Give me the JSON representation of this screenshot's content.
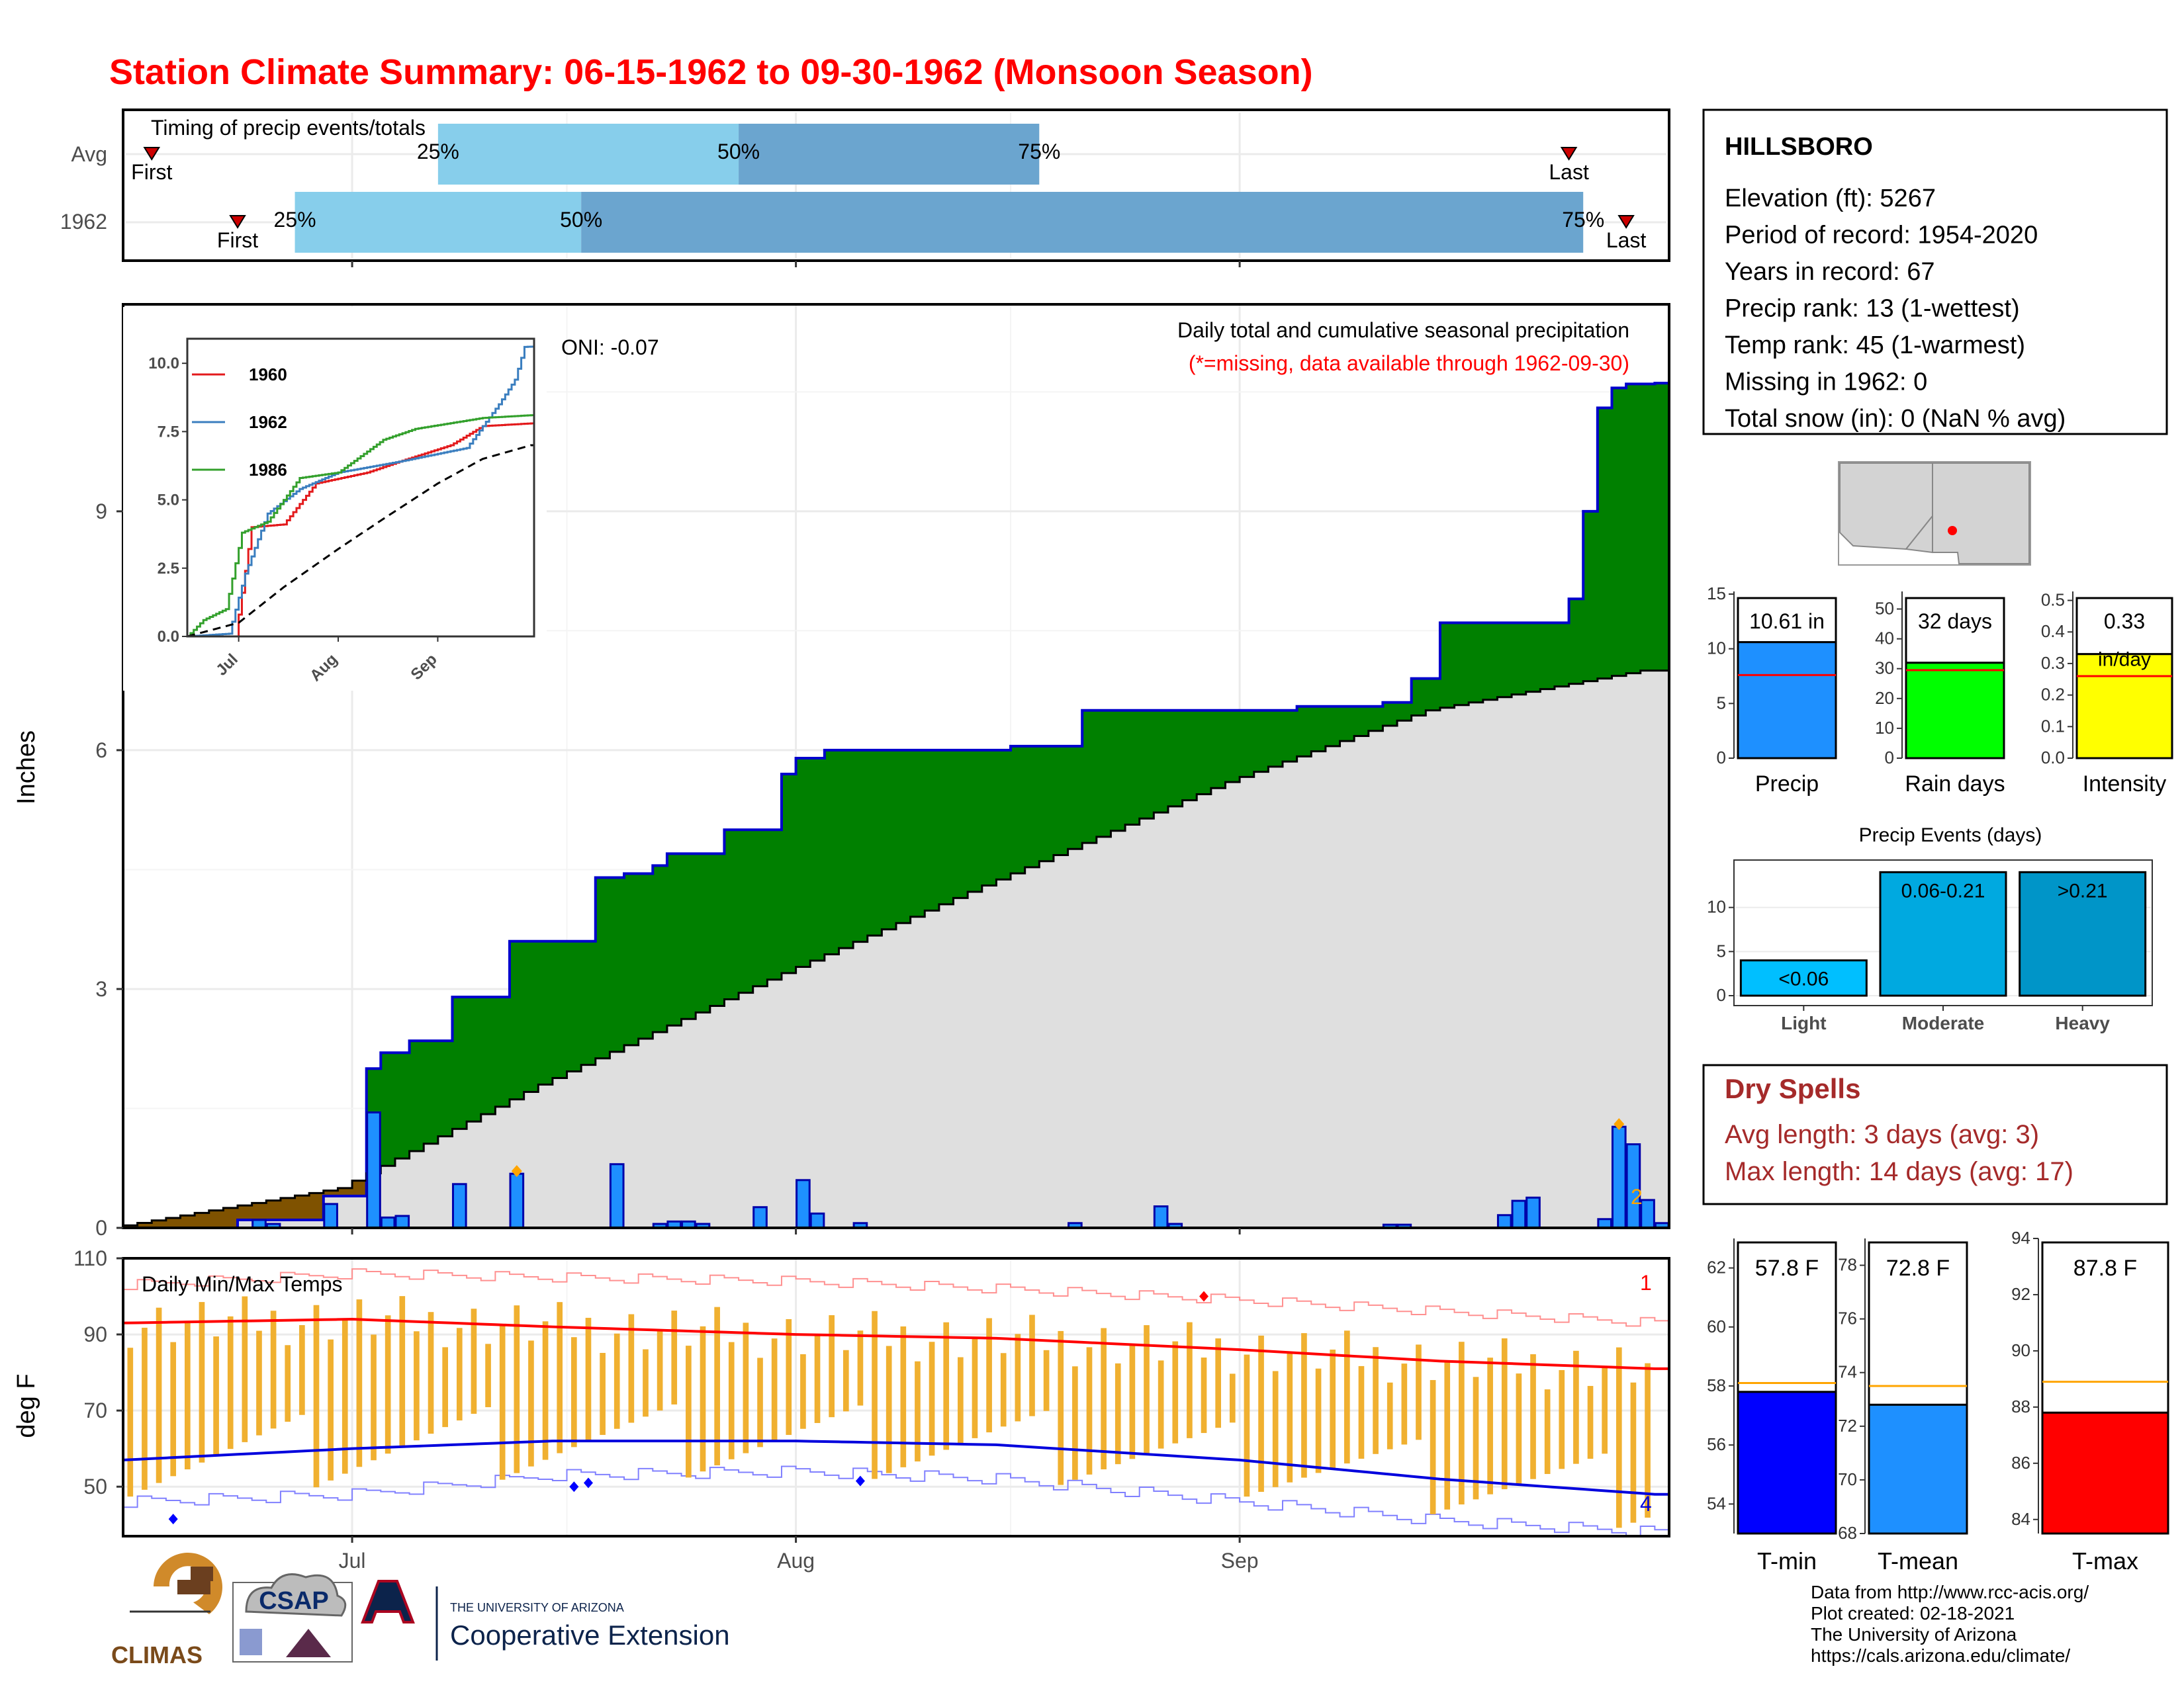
{
  "title": "Station Climate Summary: 06-15-1962 to 09-30-1962 (Monsoon Season)",
  "colors": {
    "title": "#ff0000",
    "cum_precip": "#008000",
    "avg_cum": "#dfdfdf",
    "pre_season": "#7f5200",
    "daily_bar": "#1e90ff",
    "outline": "#0000cc",
    "temp_bar": "#f0b030",
    "avg_max": "#ff0000",
    "avg_min": "#0000dd",
    "light_blue": "#87ceeb",
    "mid_blue": "#6ba5cf",
    "dry_spell": "#a52a2a"
  },
  "timing": {
    "label": "Timing of precip events/totals",
    "rows": [
      "Avg",
      "1962"
    ],
    "pct_labels": [
      "25%",
      "50%",
      "75%"
    ],
    "first_label": "First",
    "last_label": "Last",
    "avg": {
      "first": "06-17",
      "p25": "07-07",
      "p50": "07-28",
      "p75": "08-18",
      "last": "09-24"
    },
    "y1962": {
      "first": "06-23",
      "p25": "06-27",
      "p50": "07-17",
      "p75": "09-25",
      "last": "09-28"
    }
  },
  "precip_panel": {
    "ylabel": "Inches",
    "yticks": [
      "0",
      "3",
      "6",
      "9"
    ],
    "oni": "ONI: -0.07",
    "title": "Daily total and cumulative seasonal precipitation",
    "subtitle": "(*=missing, data available through 1962-09-30)",
    "corner_count": "2"
  },
  "inset": {
    "yticks": [
      "0.0",
      "2.5",
      "5.0",
      "7.5",
      "10.0"
    ],
    "xticks": [
      "Jul",
      "Aug",
      "Sep"
    ],
    "legend": [
      {
        "name": "1960",
        "color": "#e31a1c"
      },
      {
        "name": "1962",
        "color": "#3a7ebf"
      },
      {
        "name": "1986",
        "color": "#33a02c"
      }
    ]
  },
  "temp_panel": {
    "label": "Daily Min/Max Temps",
    "ylabel": "deg F",
    "yticks": [
      "50",
      "70",
      "90",
      "110"
    ],
    "xticks": [
      "Jul",
      "Aug",
      "Sep"
    ],
    "count_max": "1",
    "count_min": "4"
  },
  "station": {
    "name": "HILLSBORO",
    "lines": [
      "Elevation (ft): 5267",
      "Period of record: 1954-2020",
      "Years in record: 67",
      "Precip rank: 13 (1-wettest)",
      "Temp rank: 45 (1-warmest)",
      "Missing in 1962: 0",
      "Total snow (in): 0 (NaN % avg)"
    ]
  },
  "summary_bars": [
    {
      "label": "Precip",
      "value_label": "10.61 in",
      "value": 10.61,
      "avg": 7.6,
      "max": 15,
      "yticks": [
        "0",
        "5",
        "10",
        "15"
      ],
      "color": "#1e90ff"
    },
    {
      "label": "Rain days",
      "value_label": "32 days",
      "value": 32,
      "avg": 29.5,
      "max": 55,
      "yticks": [
        "0",
        "10",
        "20",
        "30",
        "40",
        "50"
      ],
      "color": "#00ff00"
    },
    {
      "label": "Intensity",
      "value_label": "0.33",
      "value_unit": "in/day",
      "value": 0.33,
      "avg": 0.26,
      "max": 0.52,
      "yticks": [
        "0.0",
        "0.1",
        "0.2",
        "0.3",
        "0.4",
        "0.5"
      ],
      "color": "#ffff00"
    }
  ],
  "precip_events": {
    "title": "Precip Events (days)",
    "yticks": [
      "0",
      "5",
      "10"
    ],
    "categories": [
      "Light",
      "Moderate",
      "Heavy"
    ],
    "values": [
      4,
      14,
      14
    ],
    "bar_labels": [
      "<0.06",
      "0.06-0.21",
      ">0.21"
    ],
    "colors": [
      "#00bfff",
      "#00a9e0",
      "#0095c8"
    ]
  },
  "dry_spells": {
    "title": "Dry Spells",
    "lines": [
      "Avg length: 3 days (avg: 3)",
      "Max length: 14 days (avg: 17)"
    ]
  },
  "temp_bars": [
    {
      "label": "T-min",
      "value_label": "57.8 F",
      "value": 57.8,
      "avg": 58.1,
      "min": 53,
      "max": 63,
      "yticks": [
        "54",
        "56",
        "58",
        "60",
        "62"
      ],
      "color": "#0000ff"
    },
    {
      "label": "T-mean",
      "value_label": "72.8 F",
      "value": 72.8,
      "avg": 73.5,
      "min": 68,
      "max": 79,
      "yticks": [
        "68",
        "70",
        "72",
        "74",
        "76",
        "78"
      ],
      "color": "#1e90ff"
    },
    {
      "label": "T-max",
      "value_label": "87.8 F",
      "value": 87.8,
      "avg": 88.9,
      "min": 83.5,
      "max": 94,
      "yticks": [
        "84",
        "86",
        "88",
        "90",
        "92",
        "94"
      ],
      "color": "#ff0000"
    }
  ],
  "footer": {
    "lines": [
      "Data from http://www.rcc-acis.org/",
      "Plot created: 02-18-2021",
      "The University of Arizona",
      "https://cals.arizona.edu/climate/"
    ]
  },
  "logos": {
    "climas": "CLIMAS",
    "csap": "CSAP",
    "ua_small": "THE UNIVERSITY OF ARIZONA",
    "ua_big": "Cooperative Extension"
  },
  "chart_data": [
    {
      "type": "area",
      "title": "Daily total and cumulative seasonal precipitation",
      "ylabel": "Inches",
      "ylim": [
        0,
        11.6
      ],
      "xlim": [
        "06-15",
        "09-30"
      ],
      "series": [
        {
          "name": "",
          "kind": "cumulative",
          "points": [
            [
              "06-15",
              0
            ],
            [
              "06-23",
              0.1
            ],
            [
              "06-29",
              0.4
            ],
            [
              "07-02",
              2.0
            ],
            [
              "07-03",
              2.2
            ],
            [
              "07-05",
              2.35
            ],
            [
              "07-08",
              2.9
            ],
            [
              "07-12",
              3.6
            ],
            [
              "07-18",
              4.4
            ],
            [
              "07-20",
              4.45
            ],
            [
              "07-22",
              4.55
            ],
            [
              "07-23",
              4.7
            ],
            [
              "07-27",
              5.0
            ],
            [
              "07-31",
              5.7
            ],
            [
              "08-01",
              5.9
            ],
            [
              "08-03",
              6.0
            ],
            [
              "08-16",
              6.05
            ],
            [
              "08-21",
              6.5
            ],
            [
              "09-05",
              6.55
            ],
            [
              "09-11",
              6.6
            ],
            [
              "09-13",
              6.9
            ],
            [
              "09-15",
              7.6
            ],
            [
              "09-24",
              7.9
            ],
            [
              "09-25",
              9.0
            ],
            [
              "09-26",
              10.3
            ],
            [
              "09-27",
              10.55
            ],
            [
              "09-28",
              10.6
            ],
            [
              "09-30",
              10.61
            ]
          ]
        },
        {
          "name": "",
          "kind": "daily",
          "points": [
            [
              "06-24",
              0.1
            ],
            [
              "06-25",
              0.05
            ],
            [
              "06-29",
              0.3
            ],
            [
              "07-02",
              1.45
            ],
            [
              "07-03",
              0.13
            ],
            [
              "07-04",
              0.15
            ],
            [
              "07-08",
              0.55
            ],
            [
              "07-12",
              0.68
            ],
            [
              "07-19",
              0.8
            ],
            [
              "07-22",
              0.05
            ],
            [
              "07-23",
              0.08
            ],
            [
              "07-24",
              0.08
            ],
            [
              "07-25",
              0.05
            ],
            [
              "07-29",
              0.26
            ],
            [
              "08-01",
              0.6
            ],
            [
              "08-02",
              0.18
            ],
            [
              "08-05",
              0.06
            ],
            [
              "08-20",
              0.06
            ],
            [
              "08-26",
              0.27
            ],
            [
              "08-27",
              0.05
            ],
            [
              "09-11",
              0.04
            ],
            [
              "09-12",
              0.04
            ],
            [
              "09-19",
              0.16
            ],
            [
              "09-20",
              0.34
            ],
            [
              "09-21",
              0.38
            ],
            [
              "09-26",
              0.11
            ],
            [
              "09-27",
              1.27
            ],
            [
              "09-28",
              1.05
            ],
            [
              "09-29",
              0.35
            ],
            [
              "09-30",
              0.06
            ]
          ]
        }
      ]
    },
    {
      "type": "line",
      "ylim": [
        0,
        11
      ],
      "series": [
        {
          "name": "1960",
          "points": [
            [
              "06-15",
              0
            ],
            [
              "06-30",
              0
            ],
            [
              "07-01",
              0.8
            ],
            [
              "07-05",
              4.0
            ],
            [
              "07-15",
              4.1
            ],
            [
              "07-25",
              5.6
            ],
            [
              "08-10",
              6.0
            ],
            [
              "08-20",
              6.4
            ],
            [
              "09-05",
              7.0
            ],
            [
              "09-15",
              7.7
            ],
            [
              "09-30",
              7.8
            ]
          ]
        },
        {
          "name": "1962",
          "points": [
            [
              "06-15",
              0
            ],
            [
              "06-28",
              0.1
            ],
            [
              "07-03",
              2.3
            ],
            [
              "07-10",
              4.5
            ],
            [
              "07-20",
              5.4
            ],
            [
              "08-01",
              6.0
            ],
            [
              "08-20",
              6.4
            ],
            [
              "09-10",
              6.9
            ],
            [
              "09-20",
              8.5
            ],
            [
              "09-25",
              9.4
            ],
            [
              "09-28",
              10.6
            ],
            [
              "09-30",
              10.61
            ]
          ]
        },
        {
          "name": "1986",
          "points": [
            [
              "06-15",
              0
            ],
            [
              "06-20",
              0.6
            ],
            [
              "06-27",
              1.0
            ],
            [
              "07-02",
              3.8
            ],
            [
              "07-10",
              4.2
            ],
            [
              "07-20",
              5.8
            ],
            [
              "08-01",
              6.0
            ],
            [
              "08-15",
              7.2
            ],
            [
              "08-25",
              7.6
            ],
            [
              "09-15",
              8.0
            ],
            [
              "09-30",
              8.1
            ]
          ]
        },
        {
          "name": "",
          "kind": "average",
          "dashed": true,
          "points": [
            [
              "06-15",
              0
            ],
            [
              "07-01",
              0.5
            ],
            [
              "07-15",
              1.8
            ],
            [
              "08-01",
              3.2
            ],
            [
              "08-15",
              4.3
            ],
            [
              "09-01",
              5.6
            ],
            [
              "09-15",
              6.5
            ],
            [
              "09-30",
              7.0
            ]
          ]
        }
      ]
    },
    {
      "type": "bar",
      "title": "Daily Min/Max Temps",
      "ylabel": "deg F",
      "ylim": [
        37,
        110
      ],
      "series": [
        {
          "name": "",
          "kind": "avg_max",
          "points": [
            [
              "06-15",
              93
            ],
            [
              "07-01",
              94
            ],
            [
              "07-15",
              92
            ],
            [
              "08-01",
              90
            ],
            [
              "08-15",
              89
            ],
            [
              "09-01",
              86
            ],
            [
              "09-15",
              83
            ],
            [
              "09-30",
              81
            ]
          ]
        },
        {
          "name": "",
          "kind": "avg_min",
          "points": [
            [
              "06-15",
              57
            ],
            [
              "07-01",
              60
            ],
            [
              "07-15",
              62
            ],
            [
              "08-01",
              62
            ],
            [
              "08-15",
              61
            ],
            [
              "09-01",
              57
            ],
            [
              "09-15",
              52
            ],
            [
              "09-30",
              48
            ]
          ]
        },
        {
          "name": "",
          "kind": "record_max",
          "points": [
            [
              "06-15",
              103
            ],
            [
              "07-01",
              106
            ],
            [
              "07-15",
              105
            ],
            [
              "08-01",
              104
            ],
            [
              "08-15",
              102
            ],
            [
              "09-01",
              99
            ],
            [
              "09-15",
              96
            ],
            [
              "09-30",
              93
            ]
          ]
        },
        {
          "name": "",
          "kind": "record_min",
          "points": [
            [
              "06-15",
              46
            ],
            [
              "07-01",
              48
            ],
            [
              "07-15",
              53
            ],
            [
              "08-01",
              54
            ],
            [
              "08-15",
              52
            ],
            [
              "09-01",
              46
            ],
            [
              "09-15",
              41
            ],
            [
              "09-30",
              38
            ]
          ]
        }
      ]
    }
  ]
}
